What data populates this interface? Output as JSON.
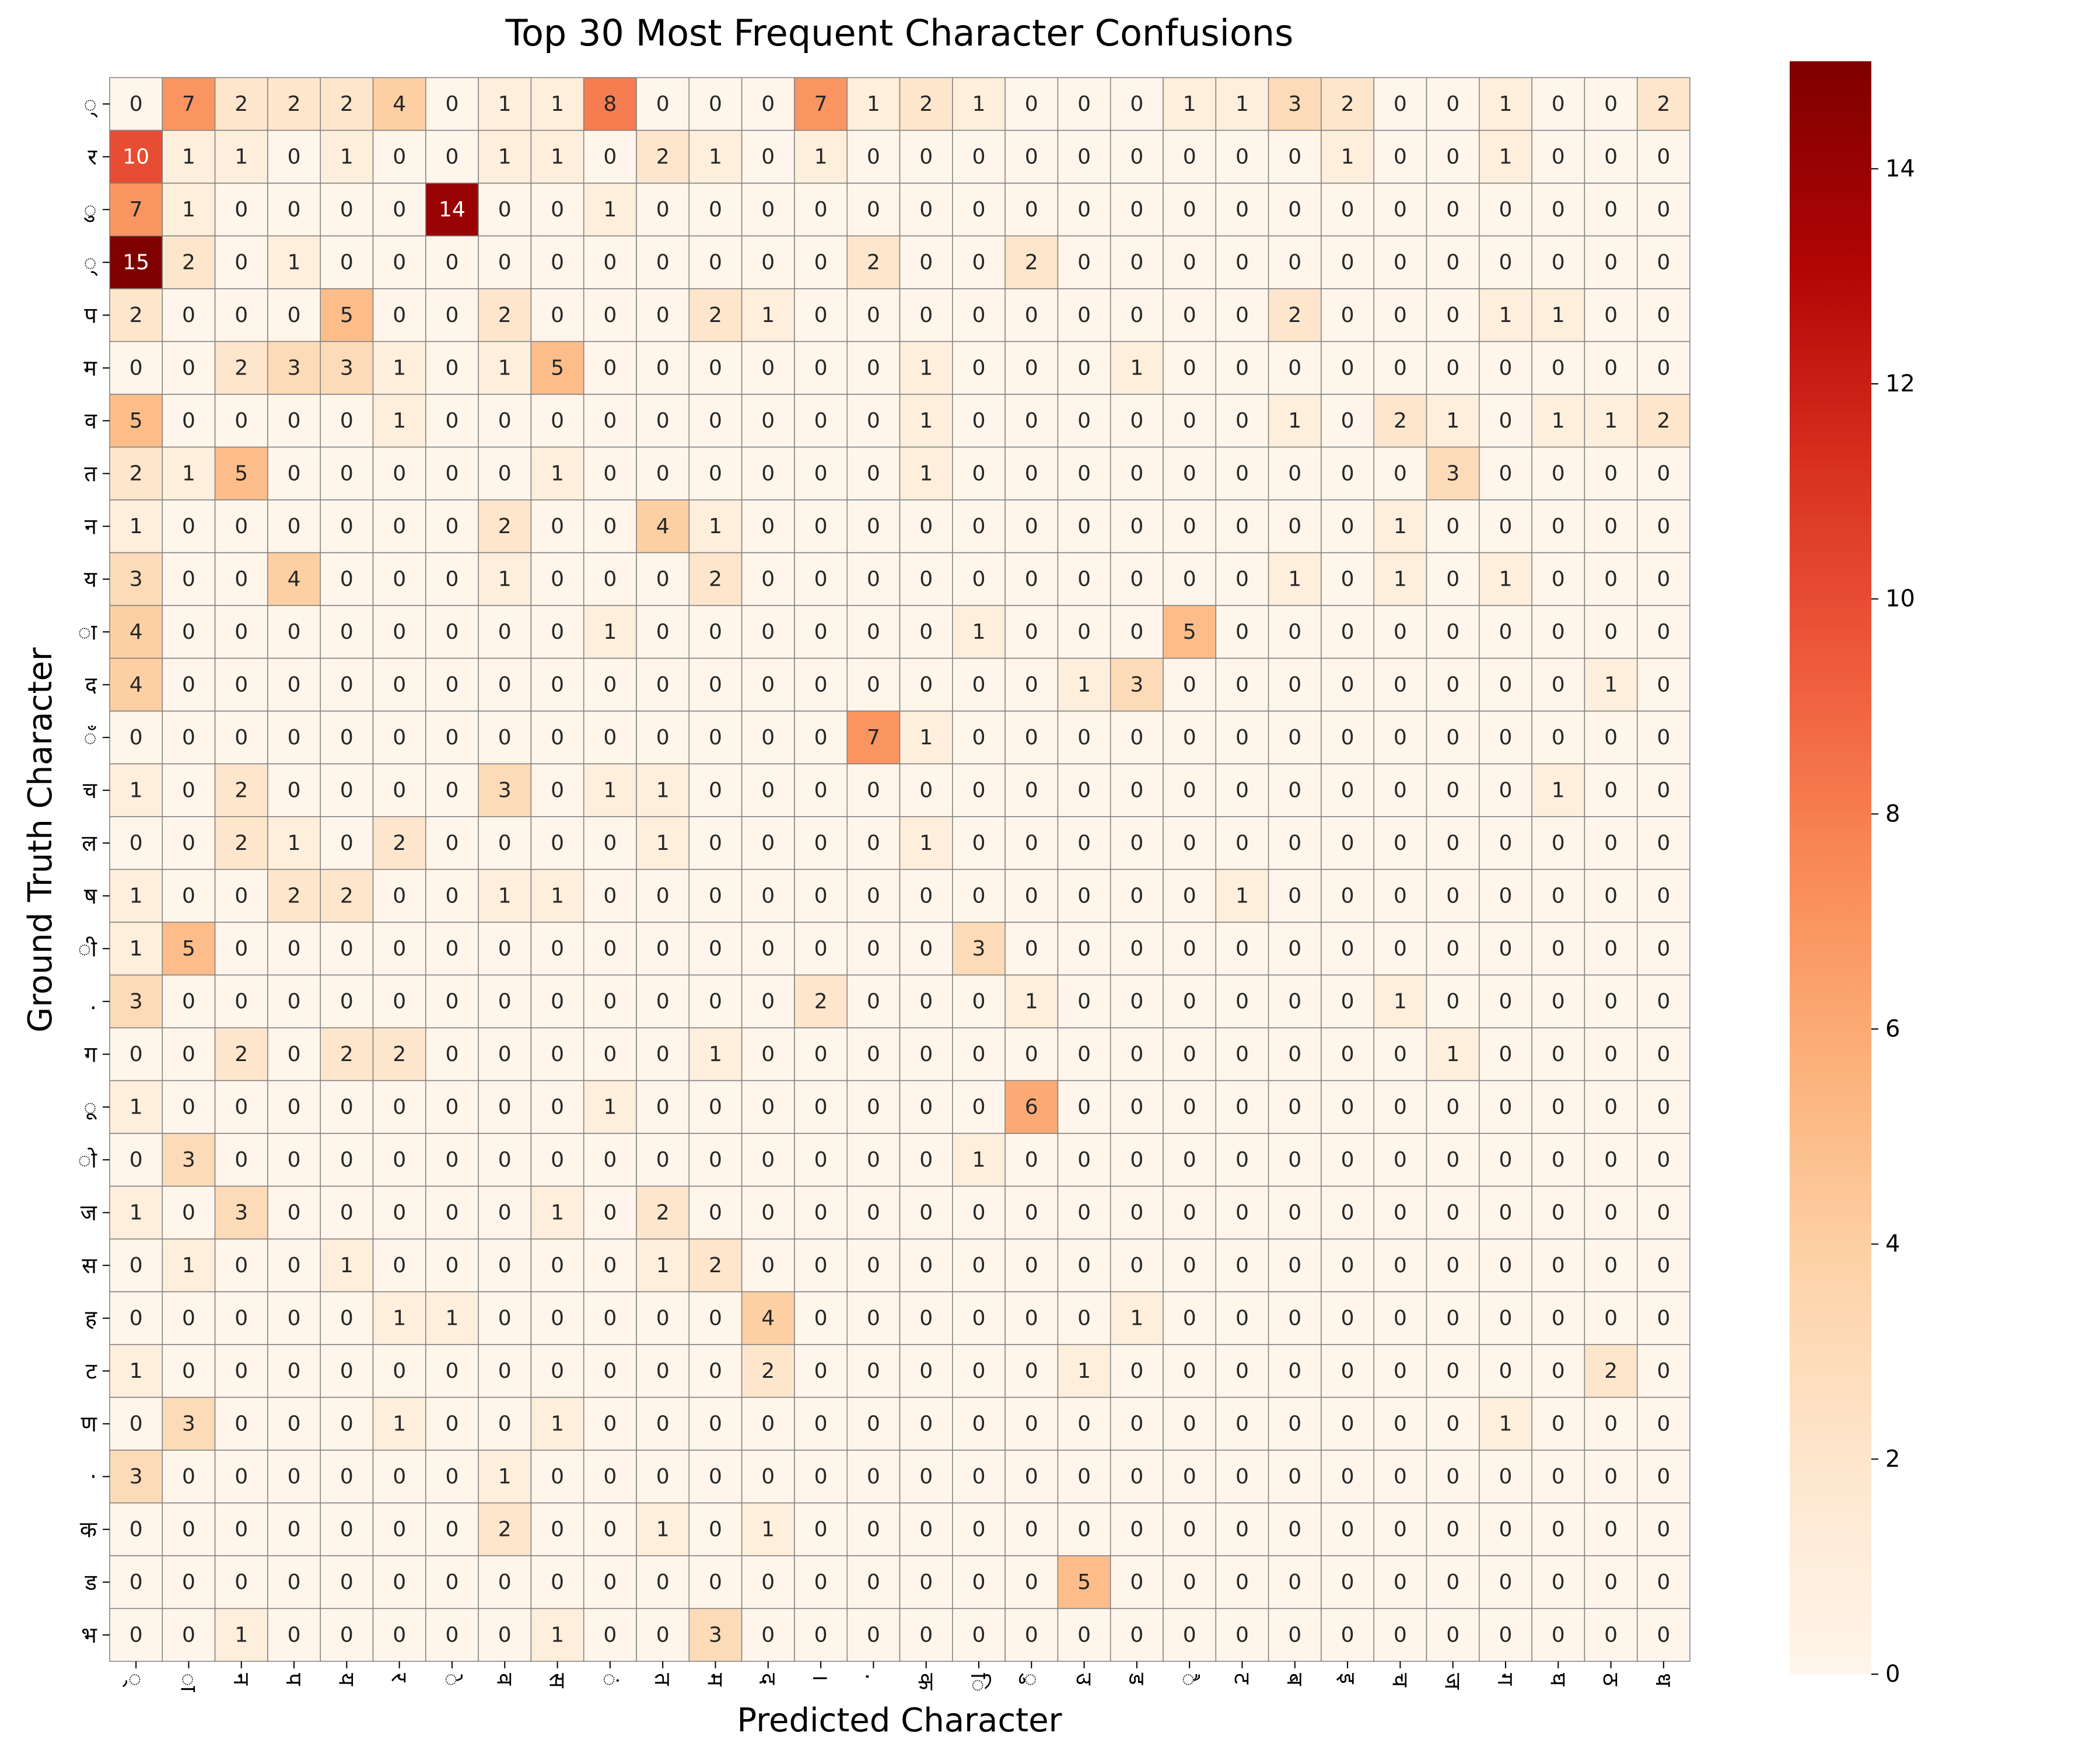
{
  "chart_data": {
    "type": "heatmap",
    "title": "Top 30 Most Frequent Character Confusions",
    "xlabel": "Predicted Character",
    "ylabel": "Ground Truth Character",
    "row_labels": [
      "्",
      "र",
      "ु",
      "्",
      "प",
      "म",
      "व",
      "त",
      "न",
      "य",
      "ा",
      "द",
      "ँ",
      "च",
      "ल",
      "ष",
      "ी",
      ".",
      "ग",
      "ू",
      "ो",
      "ज",
      "स",
      "ह",
      "ट",
      "ण",
      "·",
      "क",
      "ड",
      "भ"
    ],
    "col_labels": [
      "्",
      "ा",
      "न",
      "प",
      "य",
      "र",
      "े",
      "व",
      "स",
      "ं",
      "त",
      "म",
      "द",
      "।",
      ".",
      "क",
      "ि",
      "ु",
      "उ",
      "ड",
      "ै",
      "ट",
      "ब",
      "इ",
      "च",
      "ज",
      "ग",
      "घ",
      "ठ",
      "ध"
    ],
    "colorbar": {
      "min": 0,
      "max": 15,
      "ticks": [
        "0",
        "2",
        "4",
        "6",
        "8",
        "10",
        "12",
        "14"
      ]
    },
    "colormap": "OrRd",
    "values": [
      [
        0,
        7,
        2,
        2,
        2,
        4,
        0,
        1,
        1,
        8,
        0,
        0,
        0,
        7,
        1,
        2,
        1,
        0,
        0,
        0,
        1,
        1,
        3,
        2,
        0,
        0,
        1,
        0,
        0,
        2
      ],
      [
        10,
        1,
        1,
        0,
        1,
        0,
        0,
        1,
        1,
        0,
        2,
        1,
        0,
        1,
        0,
        0,
        0,
        0,
        0,
        0,
        0,
        0,
        0,
        1,
        0,
        0,
        1,
        0,
        0,
        0
      ],
      [
        7,
        1,
        0,
        0,
        0,
        0,
        14,
        0,
        0,
        1,
        0,
        0,
        0,
        0,
        0,
        0,
        0,
        0,
        0,
        0,
        0,
        0,
        0,
        0,
        0,
        0,
        0,
        0,
        0,
        0
      ],
      [
        15,
        2,
        0,
        1,
        0,
        0,
        0,
        0,
        0,
        0,
        0,
        0,
        0,
        0,
        2,
        0,
        0,
        2,
        0,
        0,
        0,
        0,
        0,
        0,
        0,
        0,
        0,
        0,
        0,
        0
      ],
      [
        2,
        0,
        0,
        0,
        5,
        0,
        0,
        2,
        0,
        0,
        0,
        2,
        1,
        0,
        0,
        0,
        0,
        0,
        0,
        0,
        0,
        0,
        2,
        0,
        0,
        0,
        1,
        1,
        0,
        0
      ],
      [
        0,
        0,
        2,
        3,
        3,
        1,
        0,
        1,
        5,
        0,
        0,
        0,
        0,
        0,
        0,
        1,
        0,
        0,
        0,
        1,
        0,
        0,
        0,
        0,
        0,
        0,
        0,
        0,
        0,
        0
      ],
      [
        5,
        0,
        0,
        0,
        0,
        1,
        0,
        0,
        0,
        0,
        0,
        0,
        0,
        0,
        0,
        1,
        0,
        0,
        0,
        0,
        0,
        0,
        1,
        0,
        2,
        1,
        0,
        1,
        1,
        2
      ],
      [
        2,
        1,
        5,
        0,
        0,
        0,
        0,
        0,
        1,
        0,
        0,
        0,
        0,
        0,
        0,
        1,
        0,
        0,
        0,
        0,
        0,
        0,
        0,
        0,
        0,
        3,
        0,
        0,
        0,
        0
      ],
      [
        1,
        0,
        0,
        0,
        0,
        0,
        0,
        2,
        0,
        0,
        4,
        1,
        0,
        0,
        0,
        0,
        0,
        0,
        0,
        0,
        0,
        0,
        0,
        0,
        1,
        0,
        0,
        0,
        0,
        0
      ],
      [
        3,
        0,
        0,
        4,
        0,
        0,
        0,
        1,
        0,
        0,
        0,
        2,
        0,
        0,
        0,
        0,
        0,
        0,
        0,
        0,
        0,
        0,
        1,
        0,
        1,
        0,
        1,
        0,
        0,
        0
      ],
      [
        4,
        0,
        0,
        0,
        0,
        0,
        0,
        0,
        0,
        1,
        0,
        0,
        0,
        0,
        0,
        0,
        1,
        0,
        0,
        0,
        5,
        0,
        0,
        0,
        0,
        0,
        0,
        0,
        0,
        0
      ],
      [
        4,
        0,
        0,
        0,
        0,
        0,
        0,
        0,
        0,
        0,
        0,
        0,
        0,
        0,
        0,
        0,
        0,
        0,
        1,
        3,
        0,
        0,
        0,
        0,
        0,
        0,
        0,
        0,
        1,
        0
      ],
      [
        0,
        0,
        0,
        0,
        0,
        0,
        0,
        0,
        0,
        0,
        0,
        0,
        0,
        0,
        7,
        1,
        0,
        0,
        0,
        0,
        0,
        0,
        0,
        0,
        0,
        0,
        0,
        0,
        0,
        0
      ],
      [
        1,
        0,
        2,
        0,
        0,
        0,
        0,
        3,
        0,
        1,
        1,
        0,
        0,
        0,
        0,
        0,
        0,
        0,
        0,
        0,
        0,
        0,
        0,
        0,
        0,
        0,
        0,
        1,
        0,
        0
      ],
      [
        0,
        0,
        2,
        1,
        0,
        2,
        0,
        0,
        0,
        0,
        1,
        0,
        0,
        0,
        0,
        1,
        0,
        0,
        0,
        0,
        0,
        0,
        0,
        0,
        0,
        0,
        0,
        0,
        0,
        0
      ],
      [
        1,
        0,
        0,
        2,
        2,
        0,
        0,
        1,
        1,
        0,
        0,
        0,
        0,
        0,
        0,
        0,
        0,
        0,
        0,
        0,
        0,
        1,
        0,
        0,
        0,
        0,
        0,
        0,
        0,
        0
      ],
      [
        1,
        5,
        0,
        0,
        0,
        0,
        0,
        0,
        0,
        0,
        0,
        0,
        0,
        0,
        0,
        0,
        3,
        0,
        0,
        0,
        0,
        0,
        0,
        0,
        0,
        0,
        0,
        0,
        0,
        0
      ],
      [
        3,
        0,
        0,
        0,
        0,
        0,
        0,
        0,
        0,
        0,
        0,
        0,
        0,
        2,
        0,
        0,
        0,
        1,
        0,
        0,
        0,
        0,
        0,
        0,
        1,
        0,
        0,
        0,
        0,
        0
      ],
      [
        0,
        0,
        2,
        0,
        2,
        2,
        0,
        0,
        0,
        0,
        0,
        1,
        0,
        0,
        0,
        0,
        0,
        0,
        0,
        0,
        0,
        0,
        0,
        0,
        0,
        1,
        0,
        0,
        0,
        0
      ],
      [
        1,
        0,
        0,
        0,
        0,
        0,
        0,
        0,
        0,
        1,
        0,
        0,
        0,
        0,
        0,
        0,
        0,
        6,
        0,
        0,
        0,
        0,
        0,
        0,
        0,
        0,
        0,
        0,
        0,
        0
      ],
      [
        0,
        3,
        0,
        0,
        0,
        0,
        0,
        0,
        0,
        0,
        0,
        0,
        0,
        0,
        0,
        0,
        1,
        0,
        0,
        0,
        0,
        0,
        0,
        0,
        0,
        0,
        0,
        0,
        0,
        0
      ],
      [
        1,
        0,
        3,
        0,
        0,
        0,
        0,
        0,
        1,
        0,
        2,
        0,
        0,
        0,
        0,
        0,
        0,
        0,
        0,
        0,
        0,
        0,
        0,
        0,
        0,
        0,
        0,
        0,
        0,
        0
      ],
      [
        0,
        1,
        0,
        0,
        1,
        0,
        0,
        0,
        0,
        0,
        1,
        2,
        0,
        0,
        0,
        0,
        0,
        0,
        0,
        0,
        0,
        0,
        0,
        0,
        0,
        0,
        0,
        0,
        0,
        0
      ],
      [
        0,
        0,
        0,
        0,
        0,
        1,
        1,
        0,
        0,
        0,
        0,
        0,
        4,
        0,
        0,
        0,
        0,
        0,
        0,
        1,
        0,
        0,
        0,
        0,
        0,
        0,
        0,
        0,
        0,
        0
      ],
      [
        1,
        0,
        0,
        0,
        0,
        0,
        0,
        0,
        0,
        0,
        0,
        0,
        2,
        0,
        0,
        0,
        0,
        0,
        1,
        0,
        0,
        0,
        0,
        0,
        0,
        0,
        0,
        0,
        2,
        0
      ],
      [
        0,
        3,
        0,
        0,
        0,
        1,
        0,
        0,
        1,
        0,
        0,
        0,
        0,
        0,
        0,
        0,
        0,
        0,
        0,
        0,
        0,
        0,
        0,
        0,
        0,
        0,
        1,
        0,
        0,
        0
      ],
      [
        3,
        0,
        0,
        0,
        0,
        0,
        0,
        1,
        0,
        0,
        0,
        0,
        0,
        0,
        0,
        0,
        0,
        0,
        0,
        0,
        0,
        0,
        0,
        0,
        0,
        0,
        0,
        0,
        0,
        0
      ],
      [
        0,
        0,
        0,
        0,
        0,
        0,
        0,
        2,
        0,
        0,
        1,
        0,
        1,
        0,
        0,
        0,
        0,
        0,
        0,
        0,
        0,
        0,
        0,
        0,
        0,
        0,
        0,
        0,
        0,
        0
      ],
      [
        0,
        0,
        0,
        0,
        0,
        0,
        0,
        0,
        0,
        0,
        0,
        0,
        0,
        0,
        0,
        0,
        0,
        0,
        5,
        0,
        0,
        0,
        0,
        0,
        0,
        0,
        0,
        0,
        0,
        0
      ],
      [
        0,
        0,
        1,
        0,
        0,
        0,
        0,
        0,
        1,
        0,
        0,
        3,
        0,
        0,
        0,
        0,
        0,
        0,
        0,
        0,
        0,
        0,
        0,
        0,
        0,
        0,
        0,
        0,
        0,
        0
      ]
    ]
  }
}
